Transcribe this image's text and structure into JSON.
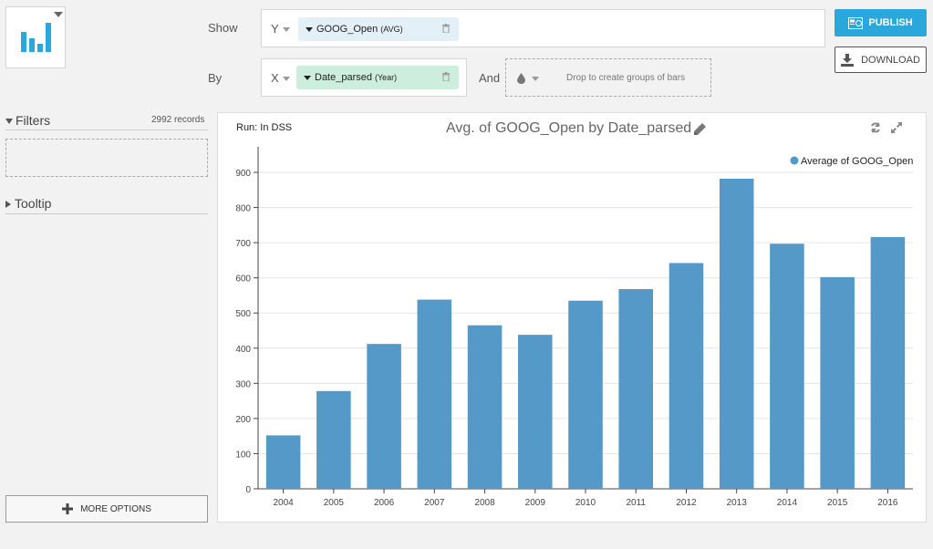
{
  "shelf": {
    "show_label": "Show",
    "by_label": "By",
    "and_label": "And",
    "y_axis_letter": "Y",
    "x_axis_letter": "X",
    "y_pill": {
      "name": "GOOG_Open",
      "agg": "(AVG)",
      "color": "#e3f0f8"
    },
    "x_pill": {
      "name": "Date_parsed",
      "agg": "(Year)",
      "color": "#cdeedd"
    },
    "group_placeholder": "Drop to create groups of bars"
  },
  "buttons": {
    "publish": "PUBLISH",
    "download": "DOWNLOAD",
    "more_options": "MORE OPTIONS",
    "accent": "#2aa8dc"
  },
  "sidebar": {
    "filters_label": "Filters",
    "records": "2992 records",
    "tooltip_label": "Tooltip"
  },
  "chart_header": {
    "run_label": "Run: In DSS",
    "title": "Avg. of GOOG_Open by Date_parsed"
  },
  "chart_data": {
    "type": "bar",
    "title": "Avg. of GOOG_Open by Date_parsed",
    "categories": [
      "2004",
      "2005",
      "2006",
      "2007",
      "2008",
      "2009",
      "2010",
      "2011",
      "2012",
      "2013",
      "2014",
      "2015",
      "2016"
    ],
    "series": [
      {
        "name": "Average of GOOG_Open",
        "values": [
          152,
          278,
          412,
          538,
          465,
          438,
          535,
          568,
          642,
          882,
          697,
          602,
          716
        ],
        "color": "#5499c7"
      }
    ],
    "ylim": [
      0,
      900
    ],
    "yticks": [
      0,
      100,
      200,
      300,
      400,
      500,
      600,
      700,
      800,
      900
    ],
    "grid": true,
    "legend_position": "top-right",
    "xlabel": "",
    "ylabel": ""
  }
}
